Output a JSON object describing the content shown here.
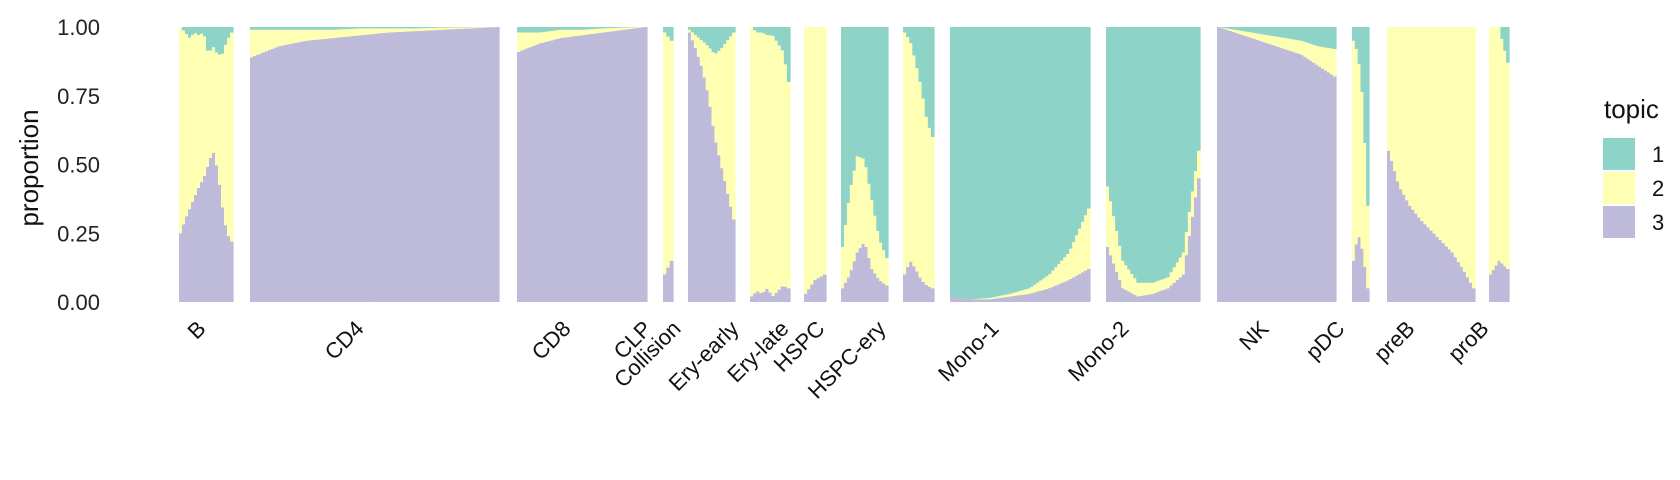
{
  "chart_data": {
    "type": "structure-plot (stacked bar)",
    "ylabel": "proportion",
    "ylim": [
      0,
      1
    ],
    "y_ticks": [
      "0.00",
      "0.25",
      "0.50",
      "0.75",
      "1.00"
    ],
    "legend": {
      "title": "topic",
      "position": "right",
      "entries": [
        {
          "label": "1",
          "color": "#8dd3c7"
        },
        {
          "label": "2",
          "color": "#ffffb3"
        },
        {
          "label": "3",
          "color": "#bebada"
        }
      ]
    },
    "series": [
      {
        "name": "1"
      },
      {
        "name": "2"
      },
      {
        "name": "3"
      }
    ],
    "stack_order_bottom_to_top": [
      "3",
      "2",
      "1"
    ],
    "groups": [
      {
        "label": "B",
        "profile": [
          {
            "t3": 0.25,
            "t2": 0.75
          },
          {
            "t3": 0.3,
            "t2": 0.68
          },
          {
            "t3": 0.34,
            "t2": 0.62
          },
          {
            "t3": 0.38,
            "t2": 0.6
          },
          {
            "t3": 0.42,
            "t2": 0.55
          },
          {
            "t3": 0.45,
            "t2": 0.53
          },
          {
            "t3": 0.5,
            "t2": 0.4
          },
          {
            "t3": 0.55,
            "t2": 0.38
          },
          {
            "t3": 0.48,
            "t2": 0.42
          },
          {
            "t3": 0.35,
            "t2": 0.55
          },
          {
            "t3": 0.25,
            "t2": 0.7
          },
          {
            "t3": 0.22,
            "t2": 0.76
          }
        ]
      },
      {
        "label": "CD4",
        "profile": [
          {
            "t3": 0.89,
            "t2": 0.1
          },
          {
            "t3": 0.93,
            "t2": 0.06
          },
          {
            "t3": 0.95,
            "t2": 0.04
          },
          {
            "t3": 0.96,
            "t2": 0.03
          },
          {
            "t3": 0.97,
            "t2": 0.025
          },
          {
            "t3": 0.98,
            "t2": 0.015
          },
          {
            "t3": 0.985,
            "t2": 0.01
          },
          {
            "t3": 0.99,
            "t2": 0.008
          },
          {
            "t3": 0.995,
            "t2": 0.004
          },
          {
            "t3": 1.0,
            "t2": 0.0
          }
        ]
      },
      {
        "label": "CD8",
        "profile": [
          {
            "t3": 0.91,
            "t2": 0.07
          },
          {
            "t3": 0.94,
            "t2": 0.04
          },
          {
            "t3": 0.96,
            "t2": 0.03
          },
          {
            "t3": 0.97,
            "t2": 0.02
          },
          {
            "t3": 0.98,
            "t2": 0.015
          },
          {
            "t3": 0.99,
            "t2": 0.008
          },
          {
            "t3": 1.0,
            "t2": 0.0
          }
        ]
      },
      {
        "label": "CLP",
        "profile": [
          {
            "t3": 0.1,
            "t2": 0.88
          },
          {
            "t3": 0.15,
            "t2": 0.8
          }
        ]
      },
      {
        "label": "Collision",
        "profile": [
          {
            "t3": 0.98,
            "t2": 0.01
          },
          {
            "t3": 0.92,
            "t2": 0.05
          },
          {
            "t3": 0.85,
            "t2": 0.1
          },
          {
            "t3": 0.75,
            "t2": 0.18
          },
          {
            "t3": 0.6,
            "t2": 0.3
          },
          {
            "t3": 0.5,
            "t2": 0.42
          },
          {
            "t3": 0.4,
            "t2": 0.55
          },
          {
            "t3": 0.3,
            "t2": 0.68
          }
        ]
      },
      {
        "label": "Ery-early",
        "profile": [
          {
            "t3": 0.02,
            "t2": 0.98
          },
          {
            "t3": 0.04,
            "t2": 0.94
          },
          {
            "t3": 0.03,
            "t2": 0.95
          },
          {
            "t3": 0.05,
            "t2": 0.92
          },
          {
            "t3": 0.02,
            "t2": 0.95
          },
          {
            "t3": 0.04,
            "t2": 0.9
          },
          {
            "t3": 0.06,
            "t2": 0.85
          },
          {
            "t3": 0.05,
            "t2": 0.75
          }
        ]
      },
      {
        "label": "Ery-late",
        "profile": [
          {
            "t3": 0.03,
            "t2": 0.97
          },
          {
            "t3": 0.08,
            "t2": 0.92
          },
          {
            "t3": 0.1,
            "t2": 0.9
          }
        ]
      },
      {
        "label": "HSPC",
        "profile": [
          {
            "t3": 0.05,
            "t2": 0.15
          },
          {
            "t3": 0.1,
            "t2": 0.3
          },
          {
            "t3": 0.18,
            "t2": 0.35
          },
          {
            "t3": 0.22,
            "t2": 0.3
          },
          {
            "t3": 0.12,
            "t2": 0.25
          },
          {
            "t3": 0.08,
            "t2": 0.15
          },
          {
            "t3": 0.06,
            "t2": 0.1
          }
        ]
      },
      {
        "label": "HSPC-ery",
        "profile": [
          {
            "t3": 0.1,
            "t2": 0.88
          },
          {
            "t3": 0.15,
            "t2": 0.8
          },
          {
            "t3": 0.12,
            "t2": 0.75
          },
          {
            "t3": 0.08,
            "t2": 0.7
          },
          {
            "t3": 0.06,
            "t2": 0.6
          },
          {
            "t3": 0.05,
            "t2": 0.55
          }
        ]
      },
      {
        "label": "Mono-1",
        "profile": [
          {
            "t3": 0.02,
            "t2": 0.0
          },
          {
            "t3": 0.01,
            "t2": 0.0
          },
          {
            "t3": 0.01,
            "t2": 0.005
          },
          {
            "t3": 0.02,
            "t2": 0.01
          },
          {
            "t3": 0.03,
            "t2": 0.02
          },
          {
            "t3": 0.05,
            "t2": 0.05
          },
          {
            "t3": 0.08,
            "t2": 0.1
          },
          {
            "t3": 0.12,
            "t2": 0.22
          }
        ]
      },
      {
        "label": "Mono-2",
        "profile": [
          {
            "t3": 0.2,
            "t2": 0.22
          },
          {
            "t3": 0.05,
            "t2": 0.1
          },
          {
            "t3": 0.02,
            "t2": 0.05
          },
          {
            "t3": 0.03,
            "t2": 0.04
          },
          {
            "t3": 0.05,
            "t2": 0.04
          },
          {
            "t3": 0.1,
            "t2": 0.08
          },
          {
            "t3": 0.45,
            "t2": 0.1
          }
        ]
      },
      {
        "label": "NK",
        "profile": [
          {
            "t3": 1.0,
            "t2": 0.0
          },
          {
            "t3": 0.98,
            "t2": 0.01
          },
          {
            "t3": 0.96,
            "t2": 0.02
          },
          {
            "t3": 0.94,
            "t2": 0.03
          },
          {
            "t3": 0.92,
            "t2": 0.04
          },
          {
            "t3": 0.9,
            "t2": 0.05
          },
          {
            "t3": 0.86,
            "t2": 0.07
          },
          {
            "t3": 0.82,
            "t2": 0.1
          }
        ]
      },
      {
        "label": "pDC",
        "profile": [
          {
            "t3": 0.15,
            "t2": 0.8
          },
          {
            "t3": 0.25,
            "t2": 0.65
          },
          {
            "t3": 0.18,
            "t2": 0.55
          },
          {
            "t3": 0.05,
            "t2": 0.3
          }
        ]
      },
      {
        "label": "preB",
        "profile": [
          {
            "t3": 0.55,
            "t2": 0.45
          },
          {
            "t3": 0.42,
            "t2": 0.58
          },
          {
            "t3": 0.35,
            "t2": 0.65
          },
          {
            "t3": 0.3,
            "t2": 0.7
          },
          {
            "t3": 0.26,
            "t2": 0.74
          },
          {
            "t3": 0.22,
            "t2": 0.78
          },
          {
            "t3": 0.18,
            "t2": 0.82
          },
          {
            "t3": 0.12,
            "t2": 0.88
          },
          {
            "t3": 0.05,
            "t2": 0.95
          }
        ]
      },
      {
        "label": "proB",
        "profile": [
          {
            "t3": 0.1,
            "t2": 0.9
          },
          {
            "t3": 0.15,
            "t2": 0.85
          },
          {
            "t3": 0.12,
            "t2": 0.75
          }
        ]
      }
    ]
  }
}
